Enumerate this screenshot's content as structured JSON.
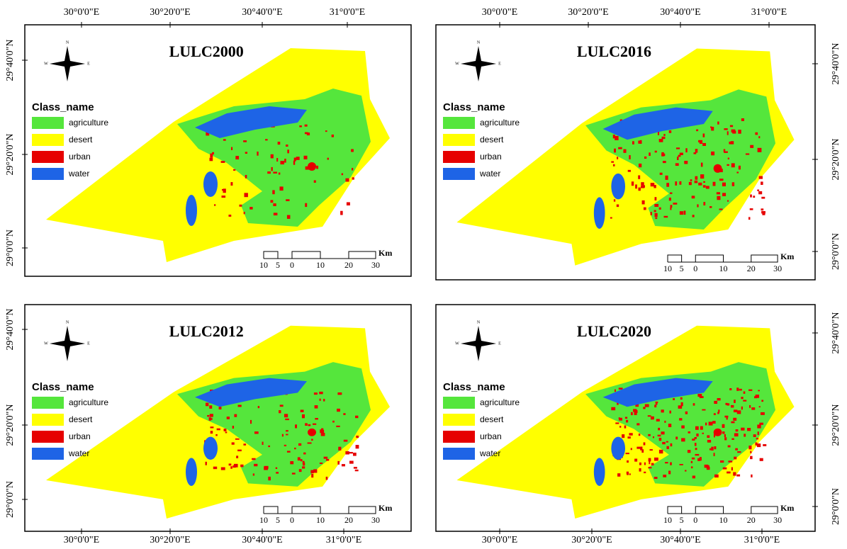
{
  "panels": [
    {
      "title": "LULC2000",
      "x_labels": [
        "30°0'0\"E",
        "30°20'0\"E",
        "30°40'0\"E",
        "31°0'0\"E"
      ],
      "y_labels": [
        "29°40'0\"N",
        "29°20'0\"N",
        "29°0'0\"N"
      ]
    },
    {
      "title": "LULC2016",
      "x_labels": [
        "30°0'0\"E",
        "30°20'0\"E",
        "30°40'0\"E",
        "31°0'0\"E"
      ],
      "y_labels": [
        "29°40'0\"N",
        "29°20'0\"N",
        "29°0'0\"N"
      ]
    },
    {
      "title": "LULC2012",
      "x_labels": [
        "30°0'0\"E",
        "30°20'0\"E",
        "30°40'0\"E",
        "31°0'0\"E"
      ],
      "y_labels": [
        "29°40'0\"N",
        "29°20'0\"N",
        "29°0'0\"N"
      ]
    },
    {
      "title": "LULC2020",
      "x_labels": [
        "30°0'0\"E",
        "30°20'0\"E",
        "30°40'0\"E",
        "31°0'0\"E"
      ],
      "y_labels": [
        "29°40'0\"N",
        "29°20'0\"N",
        "29°0'0\"N"
      ]
    }
  ],
  "legend": {
    "title": "Class_name",
    "items": [
      {
        "label": "agriculture",
        "color": "#55e63c"
      },
      {
        "label": "desert",
        "color": "#ffff00"
      },
      {
        "label": "urban",
        "color": "#e60000"
      },
      {
        "label": "water",
        "color": "#1e64e6"
      }
    ]
  },
  "scale": {
    "labels": [
      "10",
      "5",
      "0",
      "10",
      "20",
      "30"
    ],
    "unit": "Km"
  },
  "compass": [
    "N",
    "W",
    "E"
  ]
}
